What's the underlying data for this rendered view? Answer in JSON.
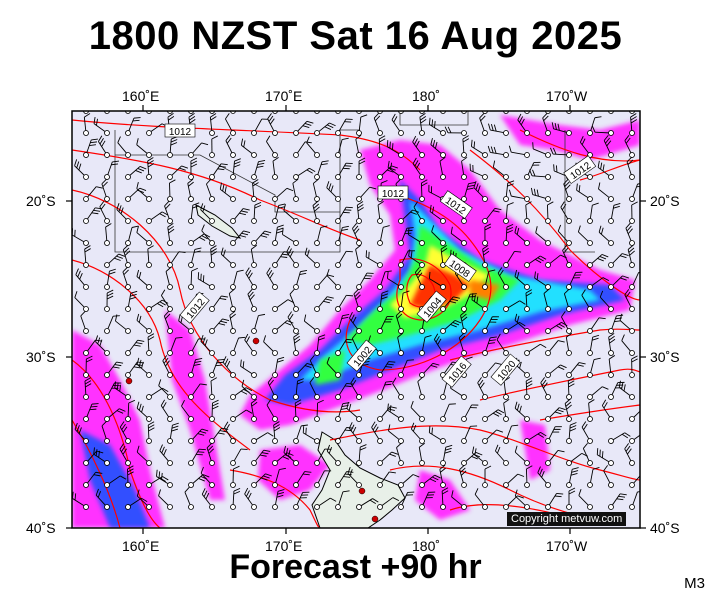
{
  "title": "1800 NZST Sat 16 Aug 2025",
  "footer": "Forecast +90 hr",
  "model": "M3",
  "copyright": "Copyright metvuw.com",
  "map": {
    "lon_labels_top": [
      "160˚E",
      "170˚E",
      "180˚",
      "170˚W"
    ],
    "lon_labels_bottom": [
      "160˚E",
      "170˚E",
      "180˚",
      "170˚W"
    ],
    "lat_labels_left": [
      "20˚S",
      "30˚S",
      "40˚S"
    ],
    "lat_labels_right": [
      "20˚S",
      "30˚S",
      "40˚S"
    ],
    "isobar_labels": [
      "1012",
      "1012",
      "1012",
      "1012",
      "1008",
      "1004",
      "1012",
      "1016",
      "1020",
      "1002",
      "1012"
    ],
    "colors": {
      "background": "#e8e8f8",
      "isobar": "#ff0000",
      "rain_light": "#ff00ff",
      "rain_medium": "#0040ff",
      "rain_heavy": "#00ff40",
      "rain_very_heavy": "#ff2000",
      "land": "#e8f0e8"
    }
  }
}
